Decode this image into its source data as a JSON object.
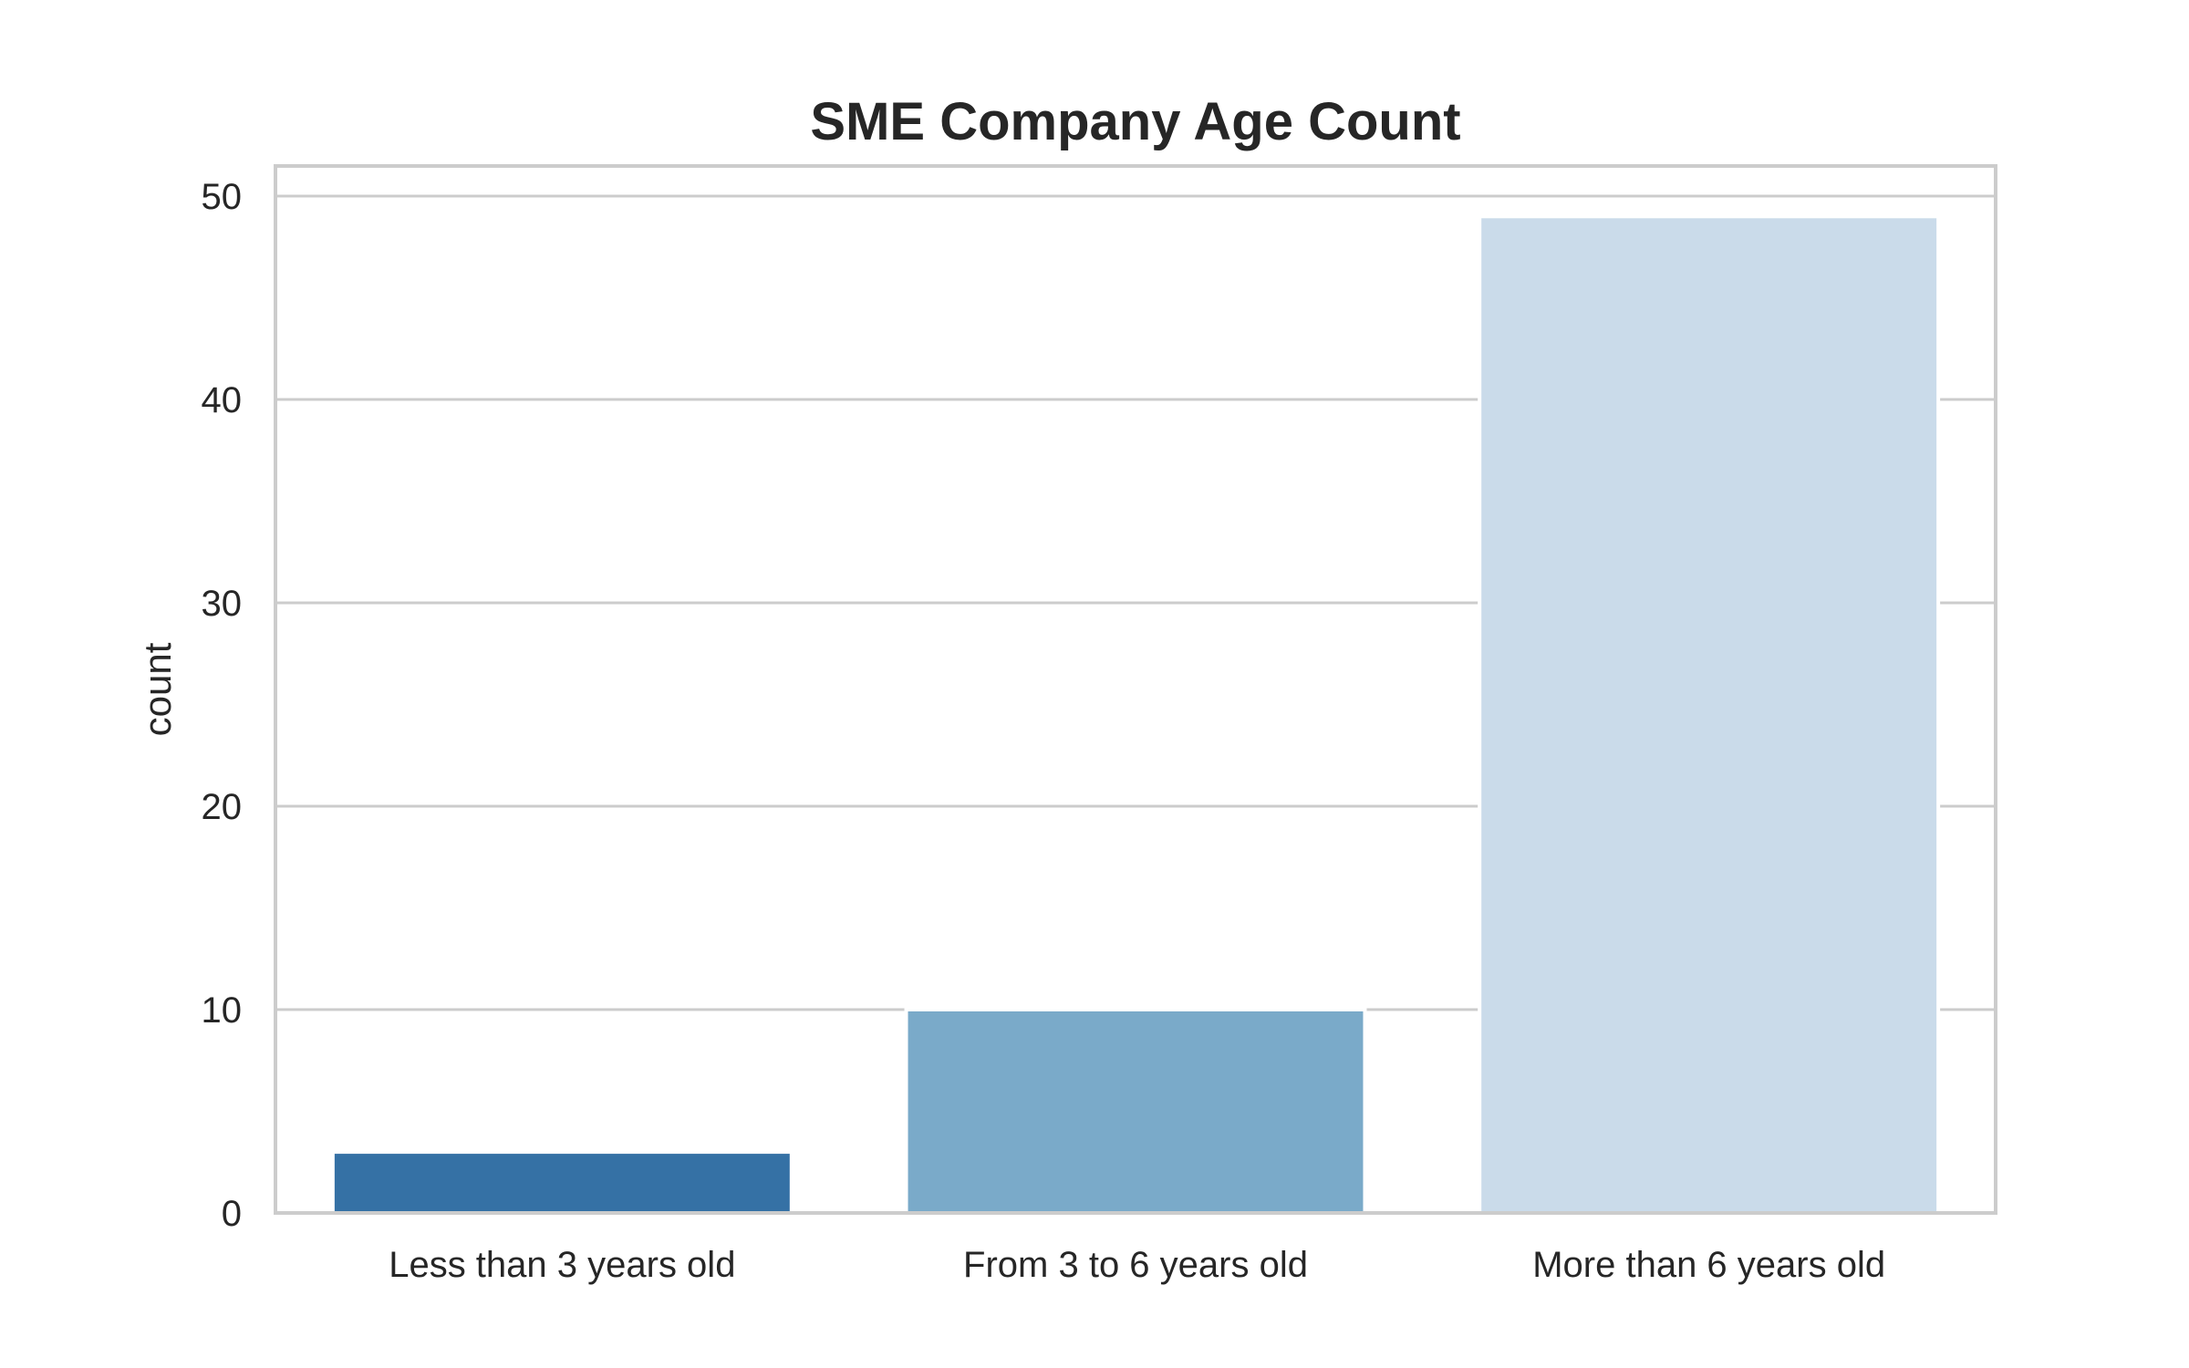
{
  "chart_data": {
    "type": "bar",
    "title": "SME Company Age Count",
    "xlabel": "",
    "ylabel": "count",
    "categories": [
      "Less than 3 years old",
      "From 3 to 6 years old",
      "More than 6 years old"
    ],
    "values": [
      3,
      10,
      49
    ],
    "colors": [
      "#3571a5",
      "#7aaac9",
      "#cadbea"
    ],
    "ylim": [
      0,
      51.5
    ],
    "yticks": [
      "0",
      "10",
      "20",
      "30",
      "40",
      "50"
    ],
    "grid": true,
    "legend": "none"
  }
}
